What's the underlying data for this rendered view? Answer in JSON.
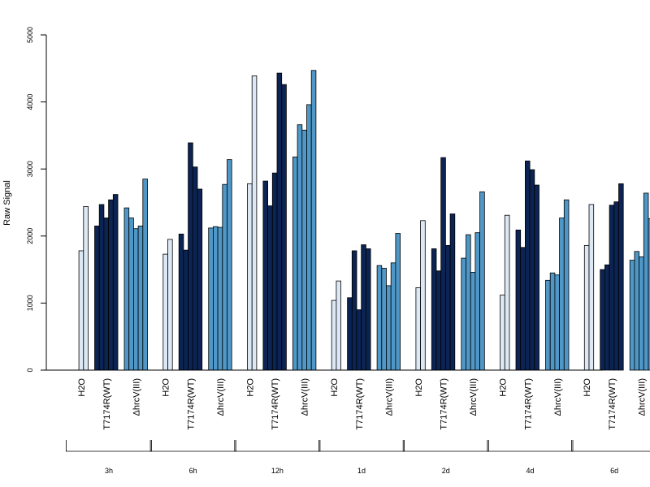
{
  "chart_data": {
    "type": "bar",
    "ylabel": "Raw Signal",
    "ylim": [
      0,
      5000
    ],
    "yticks": [
      0,
      1000,
      2000,
      3000,
      4000,
      5000
    ],
    "treatments": [
      "H2O",
      "T7174R(WT)",
      "ΔhrcV(III)"
    ],
    "time_groups": [
      "3h",
      "6h",
      "12h",
      "1d",
      "2d",
      "4d",
      "6d"
    ],
    "colors": {
      "H2O": "#dde8f5",
      "T7174R(WT)": "#0c2454",
      "ΔhrcV(III)": "#4f97c7"
    },
    "groups": [
      {
        "label": "3h",
        "values": {
          "H2O": [
            0,
            1780,
            2440
          ],
          "T7174R(WT)": [
            2150,
            2470,
            2270,
            2540,
            2620
          ],
          "ΔhrcV(III)": [
            2420,
            2270,
            2110,
            2150,
            2850
          ]
        }
      },
      {
        "label": "6h",
        "values": {
          "H2O": [
            0,
            1730,
            1950
          ],
          "T7174R(WT)": [
            2030,
            1790,
            3390,
            3030,
            2700
          ],
          "ΔhrcV(III)": [
            2120,
            2140,
            2130,
            2770,
            3140
          ]
        }
      },
      {
        "label": "12h",
        "values": {
          "H2O": [
            0,
            2780,
            4390
          ],
          "T7174R(WT)": [
            2820,
            2450,
            2940,
            4430,
            4260
          ],
          "ΔhrcV(III)": [
            3180,
            3660,
            3580,
            3960,
            4470
          ]
        }
      },
      {
        "label": "1d",
        "values": {
          "H2O": [
            0,
            1040,
            1330
          ],
          "T7174R(WT)": [
            1080,
            1780,
            900,
            1870,
            1810
          ],
          "ΔhrcV(III)": [
            1560,
            1520,
            1260,
            1600,
            2040
          ]
        }
      },
      {
        "label": "2d",
        "values": {
          "H2O": [
            0,
            1230,
            2230
          ],
          "T7174R(WT)": [
            1810,
            1480,
            3170,
            1860,
            2330
          ],
          "ΔhrcV(III)": [
            1670,
            2020,
            1460,
            2050,
            2660
          ]
        }
      },
      {
        "label": "4d",
        "values": {
          "H2O": [
            0,
            1120,
            2310
          ],
          "T7174R(WT)": [
            2090,
            1830,
            3120,
            2990,
            2760
          ],
          "ΔhrcV(III)": [
            1340,
            1450,
            1420,
            2270,
            2540
          ]
        }
      },
      {
        "label": "6d",
        "values": {
          "H2O": [
            0,
            1860,
            2470
          ],
          "T7174R(WT)": [
            1500,
            1570,
            2460,
            2510,
            2780
          ],
          "ΔhrcV(III)": [
            1640,
            1770,
            1690,
            2640,
            2260
          ]
        }
      }
    ]
  }
}
